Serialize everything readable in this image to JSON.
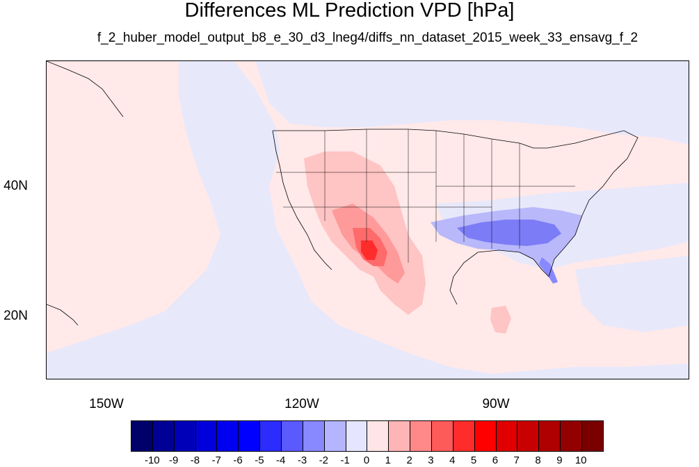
{
  "title": "Differences ML Prediction VPD [hPa]",
  "subtitle": "f_2_huber_model_output_b8_e_30_d3_lneg4/diffs_nn_dataset_2015_week_33_ensavg_f_2",
  "map": {
    "lat_labels": [
      "40N",
      "20N"
    ],
    "lon_labels": [
      "150W",
      "120W",
      "90W"
    ],
    "background_color": "#ffe9e9"
  },
  "colorbar": {
    "colors": [
      "#00006b",
      "#000094",
      "#0000b8",
      "#0000dc",
      "#0000f0",
      "#0000ff",
      "#2c2cff",
      "#5a5aff",
      "#8888ff",
      "#b5b5ff",
      "#e5e5ff",
      "#ffe5e5",
      "#ffb5b5",
      "#ff8888",
      "#ff5a5a",
      "#ff2c2c",
      "#ff0000",
      "#e00000",
      "#c80000",
      "#ae0000",
      "#930000",
      "#7a0000"
    ],
    "labels": [
      "-10",
      "-9",
      "-8",
      "-7",
      "-6",
      "-5",
      "-4",
      "-3",
      "-2",
      "-1",
      "0",
      "1",
      "2",
      "3",
      "4",
      "5",
      "6",
      "7",
      "8",
      "9",
      "10"
    ]
  }
}
